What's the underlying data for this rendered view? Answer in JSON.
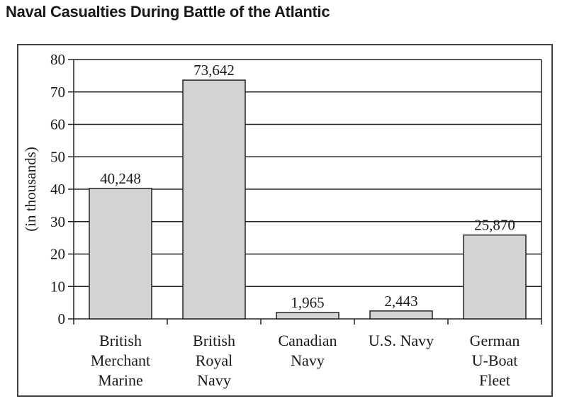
{
  "chart_data": {
    "type": "bar",
    "title": "Naval Casualties During Battle of the Atlantic",
    "ylabel": "(in thousands)",
    "xlabel": "",
    "ylim": [
      0,
      80
    ],
    "yticks": [
      0,
      10,
      20,
      30,
      40,
      50,
      60,
      70,
      80
    ],
    "grid": true,
    "categories": [
      [
        "British",
        "Merchant",
        "Marine"
      ],
      [
        "British",
        "Royal",
        "Navy"
      ],
      [
        "Canadian",
        "Navy"
      ],
      [
        "U.S. Navy"
      ],
      [
        "German",
        "U-Boat",
        "Fleet"
      ]
    ],
    "values": [
      40.248,
      73.642,
      1.965,
      2.443,
      25.87
    ],
    "data_labels": [
      "40,248",
      "73,642",
      "1,965",
      "2,443",
      "25,870"
    ],
    "bar_color": "#d3d3d3"
  }
}
